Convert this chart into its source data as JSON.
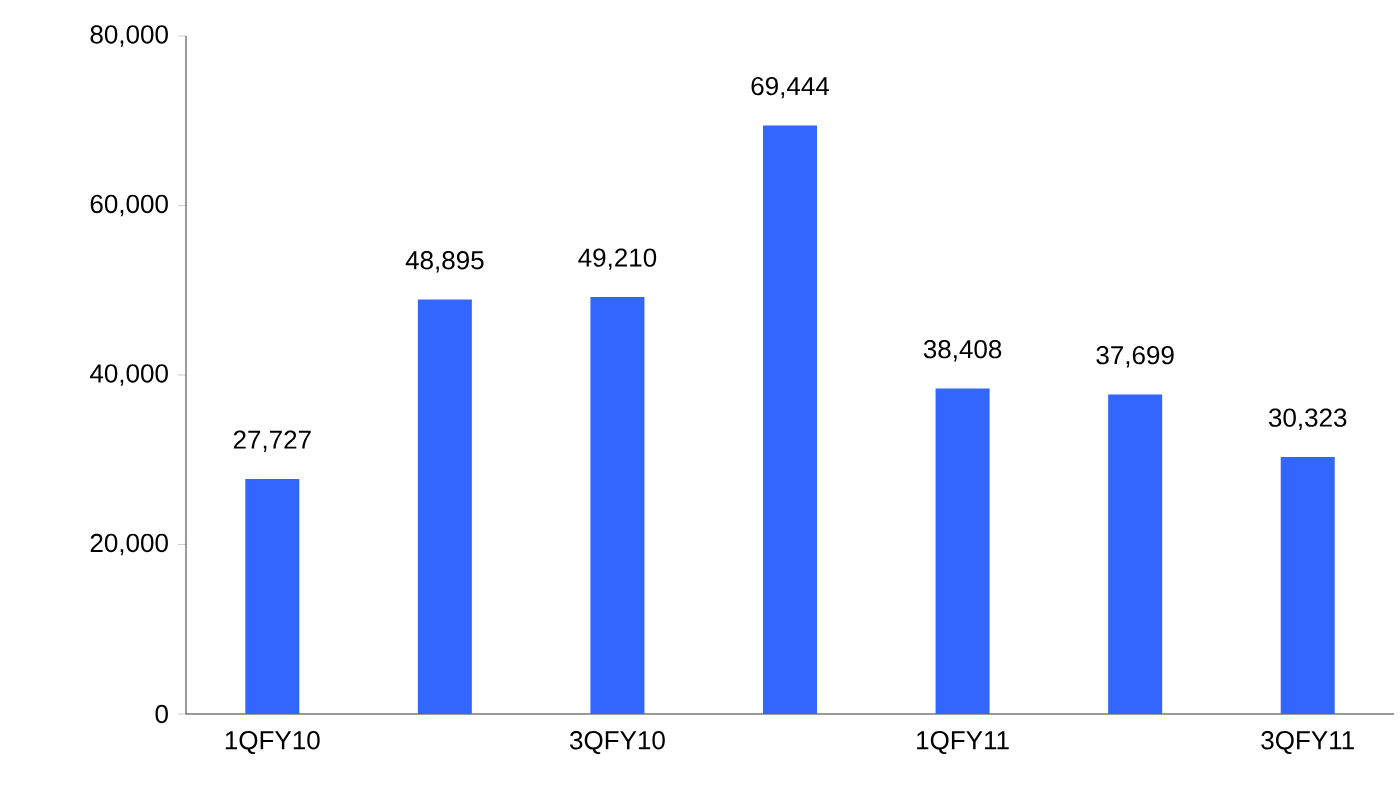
{
  "chart_data": {
    "type": "bar",
    "categories": [
      "1QFY10",
      null,
      "3QFY10",
      null,
      "1QFY11",
      null,
      "3QFY11"
    ],
    "values": [
      27727,
      48895,
      49210,
      69444,
      38408,
      37699,
      30323
    ],
    "value_labels": [
      "27,727",
      "48,895",
      "49,210",
      "69,444",
      "38,408",
      "37,699",
      "30,323"
    ],
    "color": "#3366ff",
    "ylim": [
      0,
      80000
    ],
    "yticks": [
      {
        "value": 0,
        "label": "0"
      },
      {
        "value": 20000,
        "label": "20,000"
      },
      {
        "value": 40000,
        "label": "40,000"
      },
      {
        "value": 60000,
        "label": "60,000"
      },
      {
        "value": 80000,
        "label": "80,000"
      }
    ],
    "grid": false
  }
}
